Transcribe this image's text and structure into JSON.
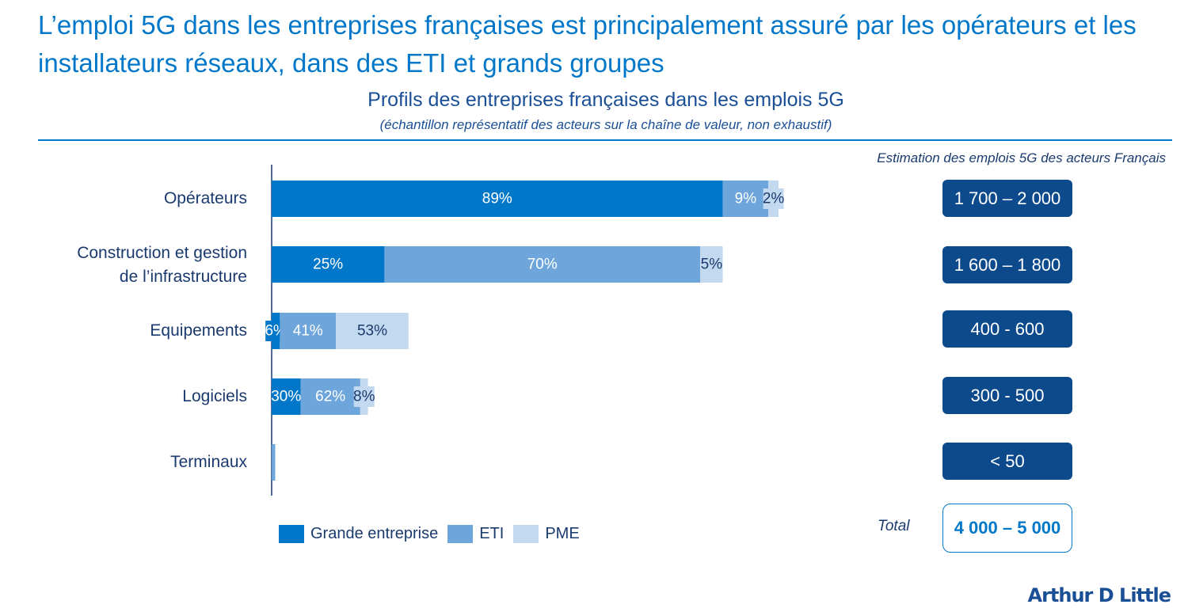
{
  "headline": "L’emploi 5G dans les entreprises françaises est principalement assuré par les opérateurs et les installateurs réseaux, dans des ETI et grands groupes",
  "chart_data": {
    "type": "bar",
    "orientation": "horizontal",
    "stacked": true,
    "title": "Profils des entreprises françaises dans les emplois 5G",
    "subtitle": "(échantillon représentatif des acteurs sur la chaîne de valeur, non exhaustif)",
    "categories": [
      "Opérateurs",
      "Construction et gestion de l’infrastructure",
      "Equipements",
      "Logiciels",
      "Terminaux"
    ],
    "category_lines": [
      [
        "Opérateurs"
      ],
      [
        "Construction et gestion",
        "de l’infrastructure"
      ],
      [
        "Equipements"
      ],
      [
        "Logiciels"
      ],
      [
        "Terminaux"
      ]
    ],
    "series": [
      {
        "name": "Grande entreprise",
        "color": "#0077c8",
        "values": [
          89,
          25,
          6,
          30,
          null
        ],
        "labels": [
          "89%",
          "25%",
          "6%",
          "30%",
          ""
        ]
      },
      {
        "name": "ETI",
        "color": "#6ea6dc",
        "values": [
          9,
          70,
          41,
          62,
          null
        ],
        "labels": [
          "9%",
          "70%",
          "41%",
          "62%",
          ""
        ]
      },
      {
        "name": "PME",
        "color": "#c3d9f0",
        "values": [
          2,
          5,
          53,
          8,
          null
        ],
        "labels": [
          "2%",
          "5%",
          "53%",
          "8%",
          ""
        ]
      }
    ],
    "relative_bar_length": [
      1.0,
      0.89,
      0.27,
      0.19,
      0.007
    ],
    "legend_position": "bottom",
    "grid": false,
    "xlabel": "",
    "ylabel": ""
  },
  "estimates": {
    "title": "Estimation des emplois 5G des acteurs Français",
    "values": [
      "1 700 – 2 000",
      "1 600 – 1 800",
      "400 - 600",
      "300 - 500",
      "< 50"
    ],
    "total_label": "Total",
    "total_value": "4 000 – 5 000"
  },
  "colors": {
    "accent": "#0077c8",
    "dark_box": "#0d4a8c",
    "text": "#1a3a6e"
  },
  "logo": "Arthur D Little"
}
